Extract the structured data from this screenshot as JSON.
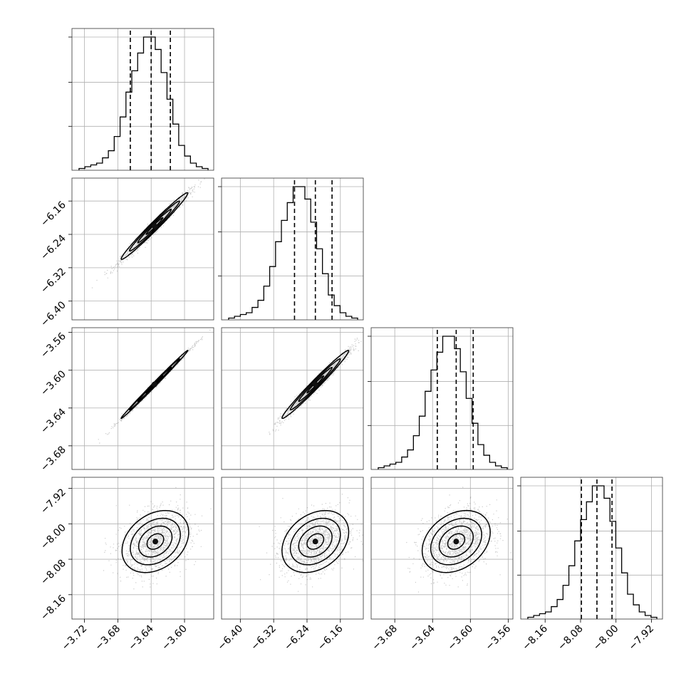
{
  "chart_data": {
    "type": "corner",
    "parameters": [
      {
        "id": "p1",
        "range": [
          -3.735,
          -3.565
        ],
        "ticks": [
          -3.72,
          -3.68,
          -3.64,
          -3.6
        ],
        "tick_labels": [
          "−3.72",
          "−3.68",
          "−3.64",
          "−3.60"
        ],
        "quantiles": [
          -3.665,
          -3.64,
          -3.617
        ],
        "hist_bins": [
          1,
          2,
          3,
          4,
          7,
          11,
          19,
          30,
          44,
          56,
          66,
          75,
          75,
          68,
          55,
          40,
          26,
          14,
          8,
          4,
          2,
          1
        ]
      },
      {
        "id": "p2",
        "range": [
          -6.445,
          -6.105
        ],
        "ticks": [
          -6.4,
          -6.32,
          -6.24,
          -6.16
        ],
        "tick_labels": [
          "−6.40",
          "−6.32",
          "−6.24",
          "−6.16"
        ],
        "quantiles": [
          -6.27,
          -6.22,
          -6.18
        ],
        "hist_bins": [
          1,
          2,
          3,
          4,
          7,
          11,
          19,
          30,
          44,
          56,
          66,
          75,
          75,
          68,
          55,
          40,
          26,
          14,
          8,
          4,
          2,
          1
        ]
      },
      {
        "id": "p3",
        "range": [
          -3.705,
          -3.555
        ],
        "ticks": [
          -3.68,
          -3.64,
          -3.6,
          -3.56
        ],
        "tick_labels": [
          "−3.68",
          "−3.64",
          "−3.60",
          "−3.56"
        ],
        "quantiles": [
          -3.635,
          -3.615,
          -3.597
        ],
        "hist_bins": [
          1,
          2,
          3,
          4,
          7,
          11,
          19,
          30,
          44,
          56,
          66,
          75,
          75,
          68,
          55,
          40,
          26,
          14,
          8,
          4,
          2,
          1
        ]
      },
      {
        "id": "p4",
        "range": [
          -8.215,
          -7.895
        ],
        "ticks": [
          -8.16,
          -8.08,
          -8.0,
          -7.92
        ],
        "tick_labels": [
          "−8.16",
          "−8.08",
          "−8.00",
          "−7.92"
        ],
        "quantiles": [
          -8.078,
          -8.043,
          -8.009
        ],
        "hist_bins": [
          1,
          2,
          3,
          4,
          7,
          11,
          19,
          30,
          44,
          56,
          66,
          75,
          75,
          68,
          55,
          40,
          26,
          14,
          8,
          4,
          2,
          1
        ]
      }
    ],
    "pairs": [
      {
        "x": "p1",
        "y": "p2",
        "center": [
          -3.636,
          -6.22
        ],
        "sigma": [
          0.02,
          0.04
        ],
        "correlation": 0.985
      },
      {
        "x": "p1",
        "y": "p3",
        "center": [
          -3.636,
          -3.615
        ],
        "sigma": [
          0.02,
          0.018
        ],
        "correlation": 0.997
      },
      {
        "x": "p2",
        "y": "p3",
        "center": [
          -6.22,
          -3.615
        ],
        "sigma": [
          0.04,
          0.018
        ],
        "correlation": 0.985
      },
      {
        "x": "p1",
        "y": "p4",
        "center": [
          -3.635,
          -8.04
        ],
        "sigma": [
          0.02,
          0.035
        ],
        "correlation": 0.3
      },
      {
        "x": "p2",
        "y": "p4",
        "center": [
          -6.22,
          -8.04
        ],
        "sigma": [
          0.04,
          0.035
        ],
        "correlation": 0.3
      },
      {
        "x": "p3",
        "y": "p4",
        "center": [
          -3.615,
          -8.04
        ],
        "sigma": [
          0.018,
          0.035
        ],
        "correlation": 0.3
      }
    ],
    "grid": true,
    "colors": {
      "line": "#000000",
      "grid": "#b0b0b0",
      "points": "#555555"
    }
  }
}
